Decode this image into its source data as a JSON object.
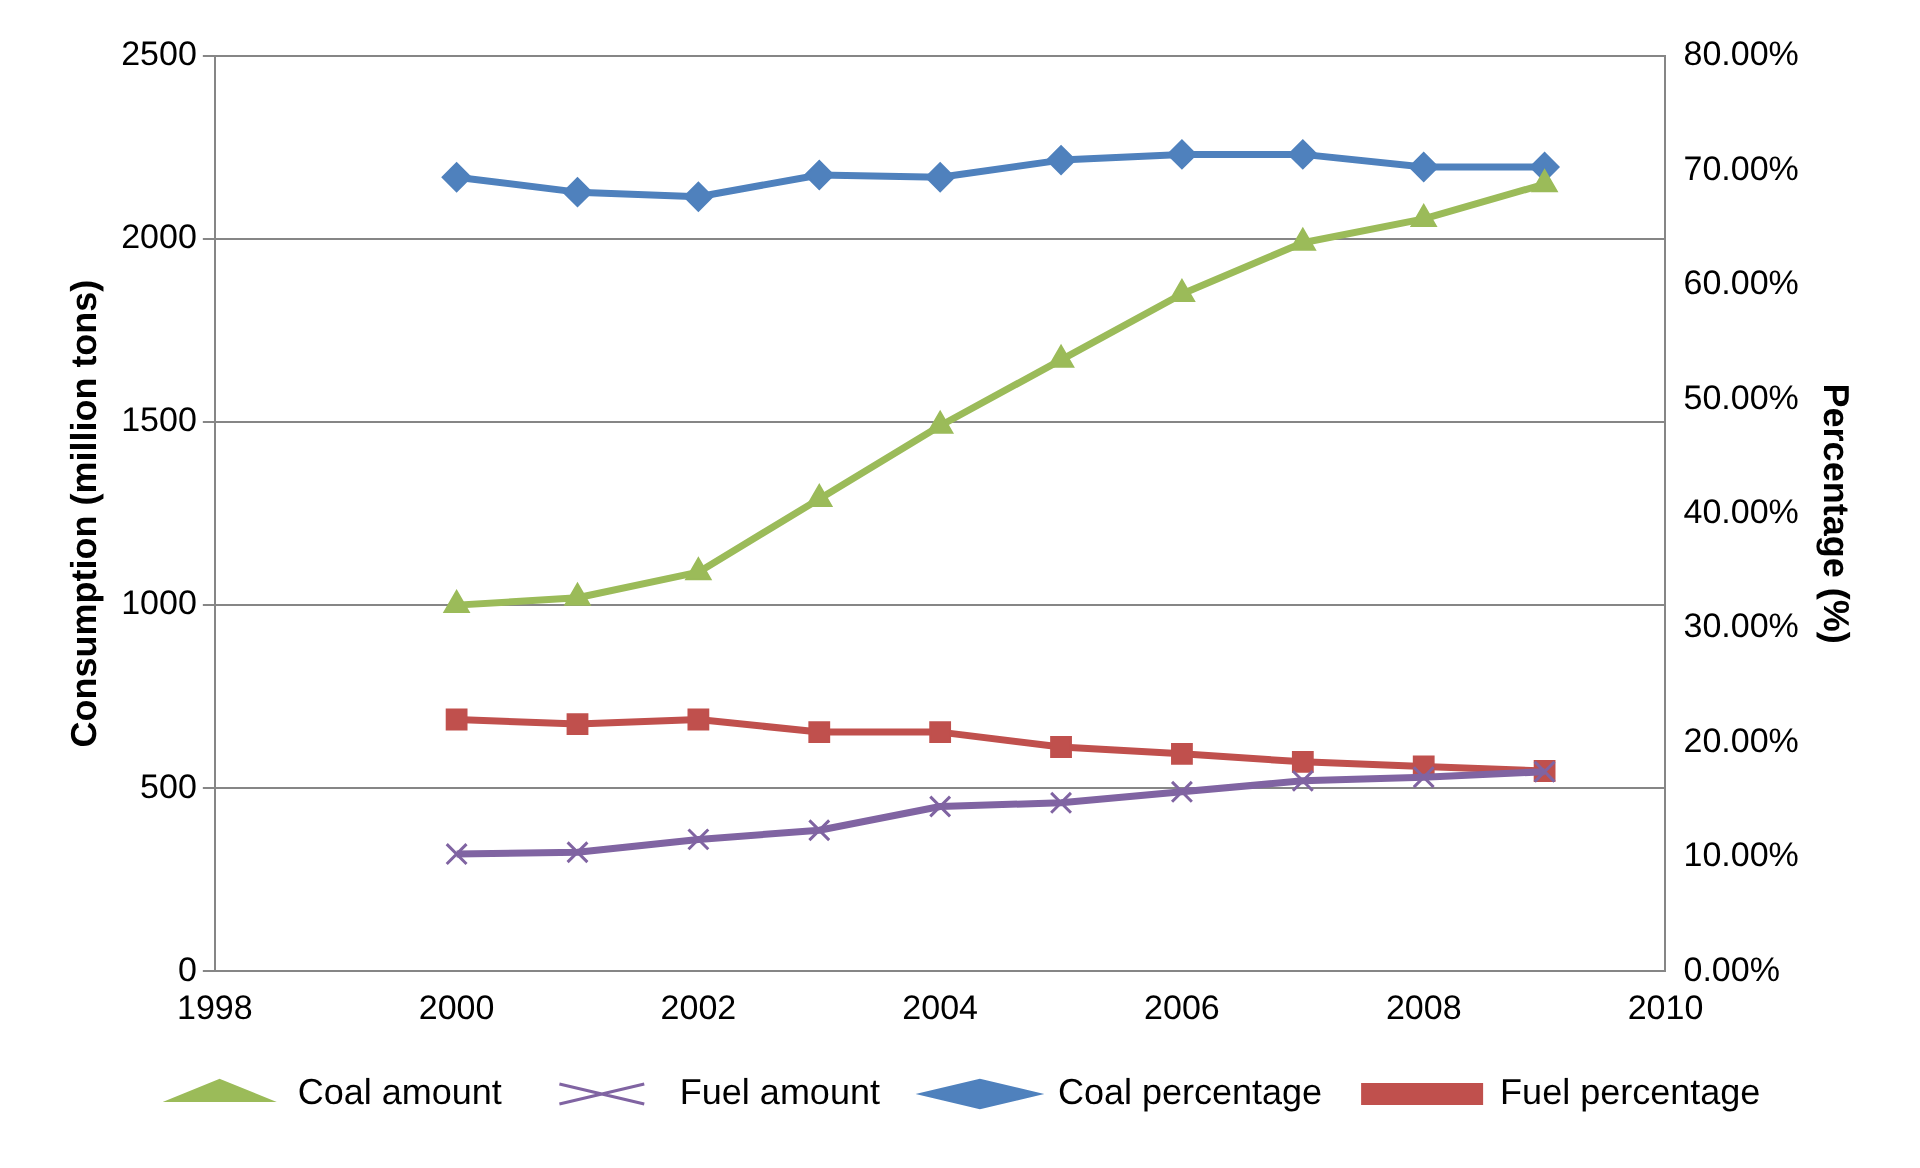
{
  "chart_data": {
    "type": "line",
    "xlabel": null,
    "ylabel": "Consumption (million tons)",
    "y2label": "Percentage (%)",
    "x": [
      2000,
      2001,
      2002,
      2003,
      2004,
      2005,
      2006,
      2007,
      2008,
      2009
    ],
    "xlim": [
      1998,
      2010
    ],
    "xticks": [
      1998,
      2000,
      2002,
      2004,
      2006,
      2008,
      2010
    ],
    "ylim": [
      0,
      2500
    ],
    "yticks": [
      0,
      500,
      1000,
      1500,
      2000,
      2500
    ],
    "y2lim": [
      0,
      80
    ],
    "y2ticks": [
      {
        "value": 0,
        "label": "0.00%"
      },
      {
        "value": 10,
        "label": "10.00%"
      },
      {
        "value": 20,
        "label": "20.00%"
      },
      {
        "value": 30,
        "label": "30.00%"
      },
      {
        "value": 40,
        "label": "40.00%"
      },
      {
        "value": 50,
        "label": "50.00%"
      },
      {
        "value": 60,
        "label": "60.00%"
      },
      {
        "value": 70,
        "label": "70.00%"
      },
      {
        "value": 80,
        "label": "80.00%"
      }
    ],
    "grid": "y",
    "legend": "bottom",
    "series": [
      {
        "name": "Coal amount",
        "color": "#9bbb59",
        "marker": "triangle",
        "values": [
          1000,
          1020,
          1090,
          1290,
          1490,
          1670,
          1850,
          1990,
          2055,
          2150
        ]
      },
      {
        "name": "Fuel amount",
        "color": "#8064a2",
        "marker": "cross",
        "values": [
          320,
          325,
          360,
          385,
          450,
          460,
          490,
          520,
          530,
          545
        ]
      },
      {
        "name": "Coal percentage",
        "color": "#4f81bd",
        "marker": "diamond",
        "axis": "y2",
        "values": [
          69.4,
          68.1,
          67.7,
          69.6,
          69.4,
          70.9,
          71.4,
          71.4,
          70.3,
          70.3
        ]
      },
      {
        "name": "Fuel percentage",
        "color": "#c0504d",
        "marker": "square",
        "axis": "y2",
        "values": [
          22.0,
          21.6,
          22.0,
          20.9,
          20.9,
          19.6,
          19.0,
          18.3,
          17.9,
          17.5
        ]
      }
    ]
  }
}
